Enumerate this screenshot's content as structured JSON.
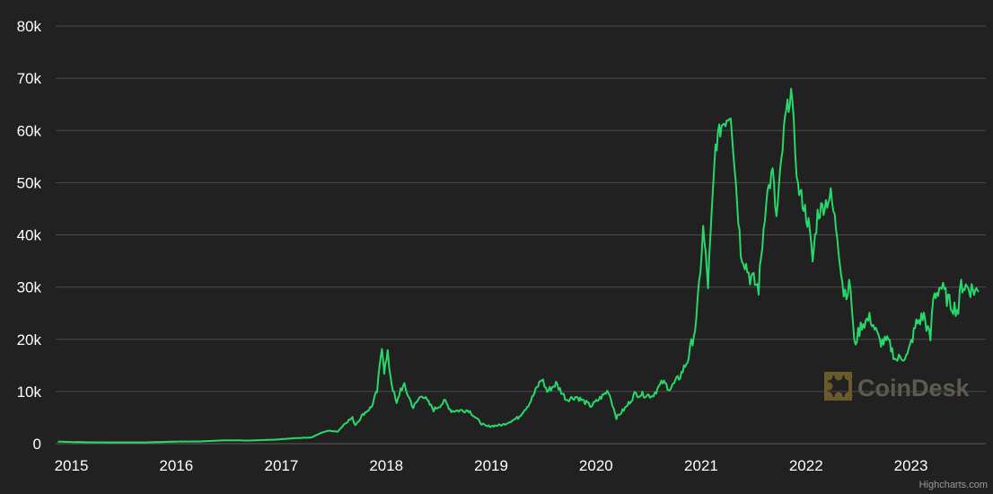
{
  "chart_data": {
    "type": "line",
    "title": "",
    "xlabel": "",
    "ylabel": "",
    "ylim": [
      0,
      80000
    ],
    "y_ticks": [
      {
        "value": 0,
        "label": "0"
      },
      {
        "value": 10000,
        "label": "10k"
      },
      {
        "value": 20000,
        "label": "20k"
      },
      {
        "value": 30000,
        "label": "30k"
      },
      {
        "value": 40000,
        "label": "40k"
      },
      {
        "value": 50000,
        "label": "50k"
      },
      {
        "value": 60000,
        "label": "60k"
      },
      {
        "value": 70000,
        "label": "70k"
      },
      {
        "value": 80000,
        "label": "80k"
      }
    ],
    "x_ticks": [
      {
        "value": "2015-01-01",
        "label": "2015"
      },
      {
        "value": "2016-01-01",
        "label": "2016"
      },
      {
        "value": "2017-01-01",
        "label": "2017"
      },
      {
        "value": "2018-01-01",
        "label": "2018"
      },
      {
        "value": "2019-01-01",
        "label": "2019"
      },
      {
        "value": "2020-01-01",
        "label": "2020"
      },
      {
        "value": "2021-01-01",
        "label": "2021"
      },
      {
        "value": "2022-01-01",
        "label": "2022"
      },
      {
        "value": "2023-01-01",
        "label": "2023"
      }
    ],
    "xlim": [
      "2014-11-01",
      "2023-08-31"
    ],
    "grid": "horizontal",
    "legend": "none",
    "series": [
      {
        "color_down": "#e0532a",
        "color": "#27d86a",
        "x": [
          "2014-11-15",
          "2015-01-15",
          "2015-03-15",
          "2015-06-15",
          "2015-09-15",
          "2015-11-15",
          "2016-01-15",
          "2016-03-15",
          "2016-06-15",
          "2016-09-15",
          "2016-12-15",
          "2017-02-15",
          "2017-04-15",
          "2017-05-20",
          "2017-06-15",
          "2017-07-15",
          "2017-08-15",
          "2017-09-05",
          "2017-09-15",
          "2017-10-15",
          "2017-11-10",
          "2017-11-30",
          "2017-12-10",
          "2017-12-17",
          "2017-12-25",
          "2018-01-06",
          "2018-01-20",
          "2018-02-06",
          "2018-02-20",
          "2018-03-05",
          "2018-04-05",
          "2018-05-05",
          "2018-06-15",
          "2018-07-25",
          "2018-08-15",
          "2018-10-15",
          "2018-11-25",
          "2018-12-15",
          "2019-02-10",
          "2019-04-05",
          "2019-05-15",
          "2019-06-26",
          "2019-07-15",
          "2019-08-15",
          "2019-09-20",
          "2019-10-25",
          "2019-12-15",
          "2020-01-15",
          "2020-02-13",
          "2020-03-12",
          "2020-04-15",
          "2020-05-15",
          "2020-06-15",
          "2020-07-15",
          "2020-08-20",
          "2020-09-15",
          "2020-10-20",
          "2020-11-15",
          "2020-12-15",
          "2021-01-08",
          "2021-01-25",
          "2021-02-20",
          "2021-03-13",
          "2021-04-14",
          "2021-05-19",
          "2021-06-20",
          "2021-07-20",
          "2021-08-15",
          "2021-09-07",
          "2021-09-20",
          "2021-10-20",
          "2021-11-10",
          "2021-12-04",
          "2021-12-20",
          "2022-01-10",
          "2022-01-24",
          "2022-02-10",
          "2022-03-28",
          "2022-04-20",
          "2022-05-12",
          "2022-06-05",
          "2022-06-18",
          "2022-07-15",
          "2022-08-14",
          "2022-09-15",
          "2022-10-15",
          "2022-11-10",
          "2022-11-25",
          "2022-12-20",
          "2023-01-20",
          "2023-02-15",
          "2023-03-10",
          "2023-03-20",
          "2023-04-14",
          "2023-05-15",
          "2023-06-15",
          "2023-06-25",
          "2023-07-15",
          "2023-08-17",
          "2023-08-25"
        ],
        "values": [
          400,
          300,
          260,
          240,
          240,
          330,
          420,
          420,
          650,
          610,
          780,
          1050,
          1200,
          2100,
          2500,
          2300,
          4200,
          4900,
          3600,
          5800,
          7000,
          10000,
          15000,
          19100,
          14000,
          17000,
          11500,
          7500,
          10500,
          11000,
          6900,
          9500,
          6500,
          8100,
          6300,
          6400,
          4000,
          3300,
          3600,
          5000,
          7800,
          12500,
          10000,
          11500,
          8500,
          9000,
          7200,
          8700,
          10200,
          5000,
          7000,
          9500,
          9400,
          9200,
          11800,
          10500,
          13000,
          16000,
          23000,
          41000,
          30500,
          57000,
          61000,
          63500,
          37000,
          32000,
          29800,
          47000,
          52000,
          43000,
          62000,
          67500,
          49000,
          46500,
          42000,
          35000,
          44000,
          47500,
          40000,
          29000,
          30000,
          19000,
          23000,
          24000,
          19500,
          19500,
          16000,
          16500,
          16800,
          23000,
          24500,
          20000,
          28000,
          30200,
          27000,
          25500,
          30500,
          30000,
          29200,
          29100
        ]
      }
    ]
  },
  "watermark": {
    "brand": "CoinDesk"
  },
  "credit": "Highcharts.com",
  "colors": {
    "background": "#212121",
    "grid": "#505050",
    "line": "#27d86a",
    "line_down": "#e0532a"
  }
}
